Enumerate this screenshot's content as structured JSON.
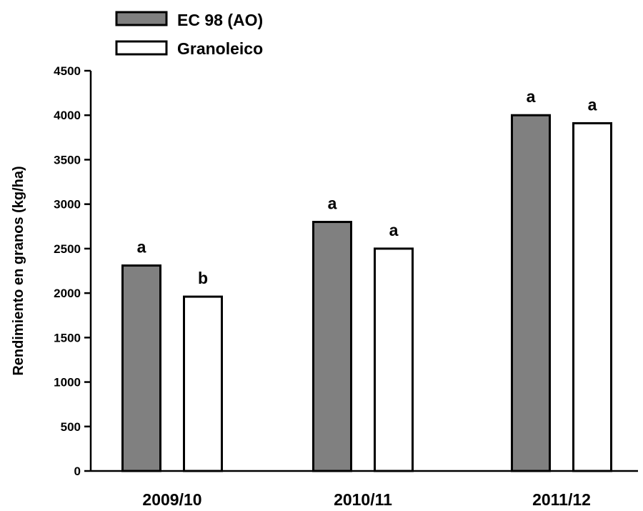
{
  "chart_data": {
    "type": "bar",
    "categories": [
      "2009/10",
      "2010/11",
      "2011/12"
    ],
    "series": [
      {
        "name": "EC 98 (AO)",
        "values": [
          2310,
          2800,
          4000
        ],
        "labels": [
          "a",
          "a",
          "a"
        ],
        "color": "#808080"
      },
      {
        "name": "Granoleico",
        "values": [
          1960,
          2500,
          3910
        ],
        "labels": [
          "b",
          "a",
          "a"
        ],
        "color": "#ffffff"
      }
    ],
    "title": "",
    "xlabel": "",
    "ylabel": "Rendimiento en granos (kg/ha)",
    "ylim": [
      0,
      4500
    ],
    "yticks": [
      0,
      500,
      1000,
      1500,
      2000,
      2500,
      3000,
      3500,
      4000,
      4500
    ],
    "ytick_labels": [
      "0",
      "500",
      "1000",
      "1500",
      "2000",
      "2500",
      "3000",
      "3500",
      "4000",
      "4500"
    ],
    "grid": false,
    "legend_position": "top-left, above plot"
  }
}
